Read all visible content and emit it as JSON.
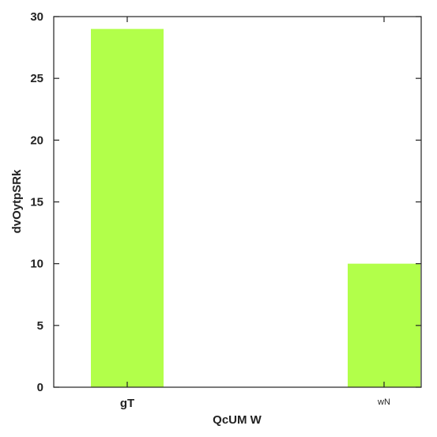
{
  "chart_data": {
    "type": "bar",
    "title": "",
    "xlabel": "QcUM W",
    "ylabel": "dvOytpSRk",
    "categories": [
      "gT",
      "wN"
    ],
    "series": [
      {
        "values": [
          29,
          10
        ]
      }
    ],
    "ylim": [
      0,
      30
    ],
    "yticks": [
      0,
      5,
      10,
      15,
      20,
      25,
      30
    ],
    "bar_color": "#b2ff4a",
    "grid": false,
    "legend": "none"
  }
}
